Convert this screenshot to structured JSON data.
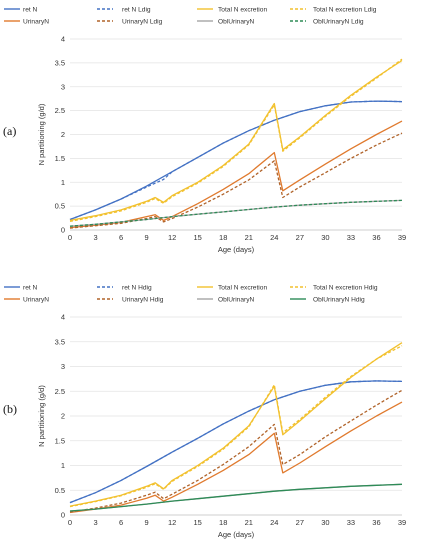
{
  "chart_data": [
    {
      "type": "line",
      "panel_label": "(a)",
      "xlabel": "Age (days)",
      "ylabel": "N partitioning (g/d)",
      "xlim": [
        0,
        39
      ],
      "ylim": [
        0,
        4
      ],
      "x_ticks": [
        "0",
        "3",
        "6",
        "9",
        "12",
        "15",
        "18",
        "21",
        "24",
        "27",
        "30",
        "33",
        "36",
        "39"
      ],
      "y_ticks": [
        "0",
        "0.5",
        "1",
        "1.5",
        "2",
        "2.5",
        "3",
        "3.5",
        "4"
      ],
      "grid": true,
      "legend_position": "top",
      "series": [
        {
          "name": "ret N",
          "color": "#4472c4",
          "dash": "solid",
          "x": [
            0,
            3,
            6,
            9,
            12,
            15,
            18,
            21,
            24,
            27,
            30,
            33,
            36,
            39
          ],
          "y": [
            0.22,
            0.42,
            0.65,
            0.92,
            1.22,
            1.52,
            1.82,
            2.08,
            2.3,
            2.48,
            2.6,
            2.68,
            2.7,
            2.69
          ]
        },
        {
          "name": "ret N Ldig",
          "color": "#4472c4",
          "dash": "dashed",
          "x": [
            0,
            3,
            6,
            9,
            10,
            11,
            12,
            15,
            18,
            21,
            24,
            27,
            30,
            33,
            36,
            39
          ],
          "y": [
            0.22,
            0.42,
            0.65,
            0.9,
            0.98,
            1.06,
            1.22,
            1.52,
            1.82,
            2.08,
            2.3,
            2.48,
            2.6,
            2.68,
            2.7,
            2.69
          ]
        },
        {
          "name": "Total N excretion",
          "color": "#f2c12e",
          "dash": "solid",
          "x": [
            0,
            3,
            6,
            9,
            10,
            11,
            12,
            15,
            18,
            21,
            24,
            25,
            27,
            30,
            33,
            36,
            39
          ],
          "y": [
            0.2,
            0.3,
            0.42,
            0.6,
            0.68,
            0.58,
            0.72,
            1.0,
            1.35,
            1.8,
            2.65,
            1.68,
            1.95,
            2.4,
            2.82,
            3.2,
            3.55
          ]
        },
        {
          "name": "Total N excretion Ldig",
          "color": "#f2c12e",
          "dash": "dashed",
          "x": [
            0,
            3,
            6,
            9,
            10,
            11,
            12,
            15,
            18,
            21,
            24,
            25,
            27,
            30,
            33,
            36,
            39
          ],
          "y": [
            0.18,
            0.28,
            0.4,
            0.58,
            0.66,
            0.56,
            0.7,
            0.98,
            1.33,
            1.78,
            2.62,
            1.65,
            1.93,
            2.38,
            2.8,
            3.18,
            3.58
          ]
        },
        {
          "name": "UrinaryN",
          "color": "#e07a2e",
          "dash": "solid",
          "x": [
            0,
            3,
            6,
            9,
            10,
            11,
            12,
            15,
            18,
            21,
            24,
            25,
            27,
            30,
            33,
            36,
            39
          ],
          "y": [
            0.05,
            0.1,
            0.16,
            0.28,
            0.32,
            0.2,
            0.28,
            0.55,
            0.85,
            1.18,
            1.62,
            0.82,
            1.05,
            1.38,
            1.7,
            2.0,
            2.28
          ]
        },
        {
          "name": "UrinaryN Ldig",
          "color": "#b0632a",
          "dash": "dashed",
          "x": [
            0,
            3,
            6,
            9,
            10,
            11,
            12,
            15,
            18,
            21,
            24,
            25,
            27,
            30,
            33,
            36,
            39
          ],
          "y": [
            0.04,
            0.09,
            0.14,
            0.24,
            0.28,
            0.17,
            0.24,
            0.48,
            0.75,
            1.05,
            1.45,
            0.68,
            0.9,
            1.2,
            1.5,
            1.78,
            2.03
          ]
        },
        {
          "name": "OblUrinaryN",
          "color": "#a5a5a5",
          "dash": "solid",
          "x": [
            0,
            3,
            6,
            9,
            12,
            15,
            18,
            21,
            24,
            27,
            30,
            33,
            36,
            39
          ],
          "y": [
            0.08,
            0.12,
            0.17,
            0.22,
            0.28,
            0.33,
            0.38,
            0.43,
            0.48,
            0.52,
            0.55,
            0.58,
            0.6,
            0.62
          ]
        },
        {
          "name": "OblUrinaryN Ldig",
          "color": "#2e8b57",
          "dash": "dashed",
          "x": [
            0,
            3,
            6,
            9,
            12,
            15,
            18,
            21,
            24,
            27,
            30,
            33,
            36,
            39
          ],
          "y": [
            0.08,
            0.12,
            0.17,
            0.22,
            0.28,
            0.33,
            0.38,
            0.43,
            0.48,
            0.52,
            0.55,
            0.58,
            0.6,
            0.62
          ]
        }
      ]
    },
    {
      "type": "line",
      "panel_label": "(b)",
      "xlabel": "Age (days)",
      "ylabel": "N partitioning (g/d)",
      "xlim": [
        0,
        39
      ],
      "ylim": [
        0,
        4
      ],
      "x_ticks": [
        "0",
        "3",
        "6",
        "9",
        "12",
        "15",
        "18",
        "21",
        "24",
        "27",
        "30",
        "33",
        "36",
        "39"
      ],
      "y_ticks": [
        "0",
        "0.5",
        "1",
        "1.5",
        "2",
        "2.5",
        "3",
        "3.5",
        "4"
      ],
      "grid": true,
      "legend_position": "top",
      "series": [
        {
          "name": "ret N",
          "color": "#4472c4",
          "dash": "solid",
          "x": [
            0,
            3,
            6,
            9,
            12,
            15,
            18,
            21,
            24,
            27,
            30,
            33,
            36,
            39
          ],
          "y": [
            0.25,
            0.45,
            0.7,
            0.98,
            1.27,
            1.55,
            1.84,
            2.1,
            2.33,
            2.5,
            2.62,
            2.69,
            2.71,
            2.7
          ]
        },
        {
          "name": "ret N Hdig",
          "color": "#4472c4",
          "dash": "dashed",
          "x": [
            0,
            3,
            6,
            9,
            12,
            15,
            18,
            21,
            24,
            27,
            30,
            33,
            36,
            39
          ],
          "y": [
            0.25,
            0.45,
            0.7,
            0.98,
            1.27,
            1.55,
            1.84,
            2.1,
            2.33,
            2.5,
            2.62,
            2.69,
            2.71,
            2.7
          ]
        },
        {
          "name": "Total N excretion",
          "color": "#f2c12e",
          "dash": "solid",
          "x": [
            0,
            3,
            6,
            9,
            10,
            11,
            12,
            15,
            18,
            21,
            24,
            25,
            27,
            30,
            33,
            36,
            39
          ],
          "y": [
            0.18,
            0.28,
            0.4,
            0.58,
            0.65,
            0.53,
            0.7,
            1.0,
            1.35,
            1.8,
            2.6,
            1.62,
            1.9,
            2.35,
            2.78,
            3.15,
            3.48
          ]
        },
        {
          "name": "Total N excretion Hdig",
          "color": "#f2c12e",
          "dash": "dashed",
          "x": [
            0,
            3,
            6,
            9,
            10,
            11,
            12,
            15,
            18,
            21,
            24,
            25,
            27,
            30,
            33,
            36,
            39
          ],
          "y": [
            0.17,
            0.27,
            0.39,
            0.56,
            0.63,
            0.52,
            0.68,
            0.98,
            1.33,
            1.78,
            2.63,
            1.66,
            1.93,
            2.38,
            2.8,
            3.15,
            3.42
          ]
        },
        {
          "name": "UrinaryN",
          "color": "#e07a2e",
          "dash": "solid",
          "x": [
            0,
            3,
            6,
            9,
            10,
            11,
            12,
            15,
            18,
            21,
            24,
            25,
            27,
            30,
            33,
            36,
            39
          ],
          "y": [
            0.05,
            0.12,
            0.2,
            0.34,
            0.4,
            0.28,
            0.36,
            0.62,
            0.9,
            1.22,
            1.65,
            0.85,
            1.05,
            1.38,
            1.7,
            2.0,
            2.28
          ]
        },
        {
          "name": "UrinaryN Hdig",
          "color": "#b0632a",
          "dash": "dashed",
          "x": [
            0,
            3,
            6,
            9,
            10,
            11,
            12,
            15,
            18,
            21,
            24,
            25,
            27,
            30,
            33,
            36,
            39
          ],
          "y": [
            0.06,
            0.14,
            0.24,
            0.4,
            0.46,
            0.33,
            0.42,
            0.7,
            1.02,
            1.38,
            1.83,
            1.02,
            1.22,
            1.58,
            1.9,
            2.22,
            2.52
          ]
        },
        {
          "name": "OblUrinaryN",
          "color": "#a5a5a5",
          "dash": "solid",
          "x": [
            0,
            3,
            6,
            9,
            12,
            15,
            18,
            21,
            24,
            27,
            30,
            33,
            36,
            39
          ],
          "y": [
            0.08,
            0.12,
            0.17,
            0.22,
            0.28,
            0.33,
            0.38,
            0.43,
            0.48,
            0.52,
            0.55,
            0.58,
            0.6,
            0.62
          ]
        },
        {
          "name": "OblUrinaryN Hdig",
          "color": "#2e8b57",
          "dash": "solid",
          "x": [
            0,
            3,
            6,
            9,
            12,
            15,
            18,
            21,
            24,
            27,
            30,
            33,
            36,
            39
          ],
          "y": [
            0.08,
            0.12,
            0.17,
            0.22,
            0.28,
            0.33,
            0.38,
            0.43,
            0.48,
            0.52,
            0.55,
            0.58,
            0.6,
            0.62
          ]
        }
      ]
    }
  ]
}
